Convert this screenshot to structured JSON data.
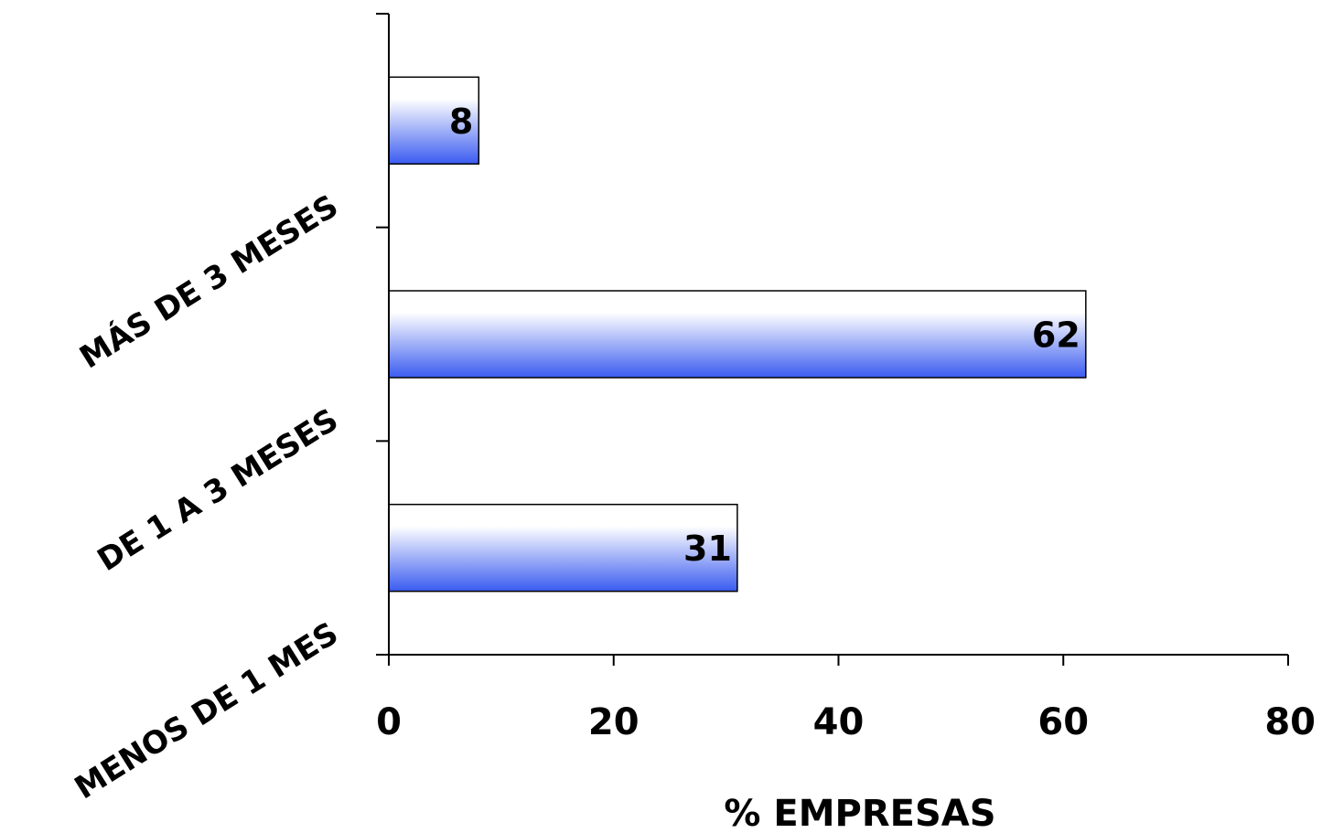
{
  "chart_data": {
    "type": "bar",
    "orientation": "horizontal",
    "categories": [
      "MENOS DE 1 MES",
      "DE 1 A 3 MESES",
      "MÁS DE 3 MESES"
    ],
    "values": [
      31,
      62,
      8
    ],
    "xlabel": "% EMPRESAS",
    "ylabel": "",
    "xlim": [
      0,
      80
    ],
    "xticks": [
      0,
      20,
      40,
      60,
      80
    ],
    "grid": false,
    "colors": {
      "bar_light": "#ffffff",
      "bar_dark": "#3a5bf0",
      "axis": "#000000"
    }
  }
}
